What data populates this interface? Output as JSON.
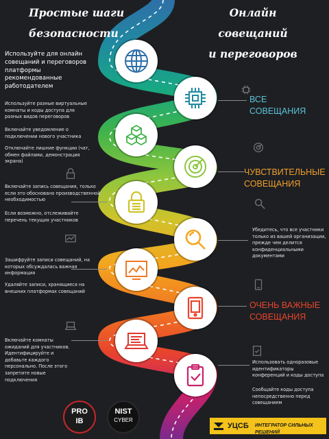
{
  "titles": {
    "left_line1": "Простые шаги",
    "left_line2": "безопасности",
    "right_line1": "Онлайн",
    "right_line2": "совещаний",
    "right_line3": "и переговоров"
  },
  "intro": {
    "text": "Используйте для онлайн совещаний и переговоров платформы рекомендованные работодателем"
  },
  "categories": {
    "all": {
      "line1": "ВСЕ",
      "line2": "СОВЕЩАНИЯ",
      "color": "#5ac2d7"
    },
    "sensitive": {
      "line1": "ЧУВСТВИТЕЛЬНЫЕ",
      "line2": "СОВЕЩАНИЯ",
      "color": "#f0a02c"
    },
    "important": {
      "line1": "ОЧЕНЬ ВАЖНЫЕ",
      "line2": "СОВЕЩАНИЯ",
      "color": "#e8452c"
    }
  },
  "left_tips": {
    "t1": "Используйте разные виртуальные комнаты и коды доступа для разных видов переговоров",
    "t2": "Включайте уведомление о подключении нового участника",
    "t3": "Отключайте лишние функции (чат, обмен файлами, демонстрация экрана)",
    "t4": "Включайте запись совещания, только если это обосновано производственной необходимостью",
    "t5": "Если возможно, отслеживайте перечень текущих участников",
    "t6": "Зашифруйте записи совещаний, на которых обсуждалась важная информация",
    "t7": "Удаляйте записи, хранящиеся на внешних платформах совещаний",
    "t8": "Включайте комнаты ожиданий для участников. Идентифицируйте и добавьте каждого персонально. После этого запретите новые подключения"
  },
  "right_tips": {
    "r1": "Убедитесь, что все участники только из вашей организации, прежде чем делится конфиденциальными документами",
    "r2": "Использовать одноразовые идентификаторы конференций и коды доступа",
    "r3": "Сообщайте коды доступа непосредственно перед совещанием"
  },
  "colors": {
    "road": [
      "#2f6fa8",
      "#1f8aa0",
      "#18a784",
      "#3fb34a",
      "#8cc63e",
      "#cfc32b",
      "#f3a61f",
      "#f07a22",
      "#e8452c",
      "#c9206a",
      "#7b2a8c"
    ],
    "background": "#1e1f23",
    "dashes": "#ffffff"
  },
  "step_icons": [
    "globe-icon",
    "chip-icon",
    "cubes-icon",
    "radar-icon",
    "lock-icon",
    "magnifier-icon",
    "chart-icon",
    "tablet-icon",
    "laptop-icon",
    "clipboard-icon"
  ],
  "logos": {
    "pro_top": "PRO",
    "pro_bottom": "IB",
    "nist_top": "NIST",
    "nist_bottom": "CYBER",
    "ucsb_name": "УЦСБ",
    "ucsb_slogan": "ИНТЕГРАТОР СИЛЬНЫХ РЕШЕНИЙ"
  }
}
